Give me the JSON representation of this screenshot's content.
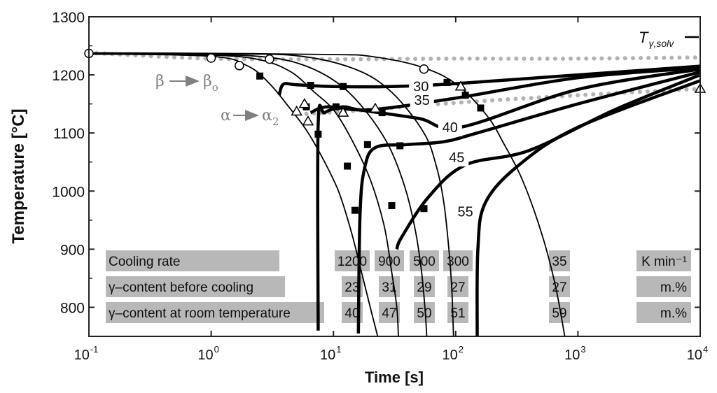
{
  "chart_data": {
    "type": "line",
    "title": "",
    "xlabel": "Time [s]",
    "ylabel": "Temperature [°C]",
    "x_scale": "log",
    "xlim": [
      0.1,
      10000
    ],
    "ylim": [
      750,
      1300
    ],
    "x_ticks": [
      {
        "value": 0.1,
        "base": "10",
        "exp": "-1"
      },
      {
        "value": 1,
        "base": "10",
        "exp": "0"
      },
      {
        "value": 10,
        "base": "10",
        "exp": "1"
      },
      {
        "value": 100,
        "base": "10",
        "exp": "2"
      },
      {
        "value": 1000,
        "base": "10",
        "exp": "3"
      },
      {
        "value": 10000,
        "base": "10",
        "exp": "4"
      }
    ],
    "y_ticks": [
      {
        "value": 800,
        "label": "800"
      },
      {
        "value": 900,
        "label": "900"
      },
      {
        "value": 1000,
        "label": "1000"
      },
      {
        "value": 1100,
        "label": "1100"
      },
      {
        "value": 1200,
        "label": "1200"
      },
      {
        "value": 1300,
        "label": "1300"
      }
    ],
    "phase_labels": {
      "t_solv": {
        "main": "T",
        "sub": "γ,solv",
        "y": 1265
      },
      "beta": {
        "from": "β",
        "to": "β",
        "to_sub": "o"
      },
      "alpha": {
        "from": "α",
        "to": "α",
        "to_sub": "2"
      }
    },
    "dotted_boundaries": [
      {
        "name": "upper-phase-boundary",
        "points": [
          [
            0.1,
            1238
          ],
          [
            1,
            1228
          ],
          [
            10,
            1227
          ],
          [
            100,
            1228
          ],
          [
            1000,
            1228
          ],
          [
            10000,
            1230
          ]
        ]
      },
      {
        "name": "lower-phase-boundary",
        "points": [
          [
            6,
            1133
          ],
          [
            20,
            1140
          ],
          [
            100,
            1152
          ],
          [
            1000,
            1165
          ],
          [
            10000,
            1176
          ]
        ]
      }
    ],
    "cooling_curves": [
      {
        "rate": "1200",
        "points": [
          [
            0.1,
            1236
          ],
          [
            1,
            1232
          ],
          [
            2,
            1215
          ],
          [
            3,
            1185
          ],
          [
            4.5,
            1140
          ],
          [
            6,
            1105
          ],
          [
            8,
            1060
          ],
          [
            11,
            1000
          ],
          [
            14,
            930
          ],
          [
            17,
            860
          ],
          [
            20,
            800
          ],
          [
            23,
            750
          ]
        ]
      },
      {
        "rate": "900",
        "points": [
          [
            0.1,
            1236
          ],
          [
            1,
            1234
          ],
          [
            2.5,
            1226
          ],
          [
            4.5,
            1205
          ],
          [
            7,
            1170
          ],
          [
            10,
            1140
          ],
          [
            14,
            1090
          ],
          [
            20,
            1020
          ],
          [
            26,
            940
          ],
          [
            30,
            860
          ],
          [
            33,
            800
          ],
          [
            34,
            750
          ]
        ]
      },
      {
        "rate": "500",
        "points": [
          [
            0.1,
            1237
          ],
          [
            1,
            1235
          ],
          [
            3,
            1230
          ],
          [
            6,
            1215
          ],
          [
            11,
            1185
          ],
          [
            18,
            1140
          ],
          [
            28,
            1080
          ],
          [
            38,
            1010
          ],
          [
            46,
            940
          ],
          [
            52,
            870
          ],
          [
            56,
            800
          ],
          [
            58,
            750
          ]
        ]
      },
      {
        "rate": "300",
        "points": [
          [
            0.1,
            1237
          ],
          [
            1,
            1236
          ],
          [
            5,
            1233
          ],
          [
            15,
            1210
          ],
          [
            30,
            1170
          ],
          [
            55,
            1100
          ],
          [
            70,
            1040
          ],
          [
            80,
            980
          ],
          [
            88,
            900
          ],
          [
            93,
            830
          ],
          [
            96,
            750
          ]
        ]
      },
      {
        "rate": "35",
        "points": [
          [
            0.1,
            1238
          ],
          [
            1,
            1237
          ],
          [
            10,
            1235
          ],
          [
            20,
            1232
          ],
          [
            50,
            1215
          ],
          [
            100,
            1185
          ],
          [
            180,
            1130
          ],
          [
            250,
            1080
          ],
          [
            350,
            1020
          ],
          [
            500,
            930
          ],
          [
            650,
            840
          ],
          [
            780,
            750
          ]
        ]
      }
    ],
    "isolines": [
      {
        "label": "30",
        "label_x": 52,
        "label_y": 1180,
        "points": [
          [
            3.6,
            1165
          ],
          [
            3.9,
            1184
          ],
          [
            5,
            1183
          ],
          [
            10,
            1180
          ],
          [
            30,
            1180
          ],
          [
            100,
            1185
          ],
          [
            1000,
            1200
          ],
          [
            10000,
            1215
          ]
        ]
      },
      {
        "label": "35",
        "label_x": 53,
        "label_y": 1157,
        "points": [
          [
            6.5,
            1135
          ],
          [
            9,
            1145
          ],
          [
            20,
            1140
          ],
          [
            100,
            1160
          ],
          [
            1000,
            1195
          ],
          [
            10000,
            1212
          ]
        ]
      },
      {
        "label": "40",
        "label_x": 90,
        "label_y": 1110,
        "points": [
          [
            7.5,
            760
          ],
          [
            7.5,
            1115
          ],
          [
            8.5,
            1135
          ],
          [
            12,
            1145
          ],
          [
            16,
            1140
          ],
          [
            50,
            1125
          ],
          [
            110,
            1110
          ],
          [
            1000,
            1175
          ],
          [
            10000,
            1210
          ]
        ]
      },
      {
        "label": "45",
        "label_x": 102,
        "label_y": 1058,
        "points": [
          [
            16,
            755
          ],
          [
            16.5,
            960
          ],
          [
            18,
            1040
          ],
          [
            22,
            1075
          ],
          [
            40,
            1080
          ],
          [
            80,
            1085
          ],
          [
            150,
            1100
          ],
          [
            1000,
            1150
          ],
          [
            10000,
            1205
          ]
        ]
      },
      {
        "label": "55",
        "label_x": 120,
        "label_y": 965,
        "points": [
          [
            33,
            900
          ],
          [
            36,
            920
          ],
          [
            60,
            990
          ],
          [
            120,
            1045
          ],
          [
            400,
            1070
          ],
          [
            2000,
            1140
          ],
          [
            10000,
            1200
          ]
        ]
      },
      {
        "label": "",
        "points": [
          [
            150,
            750
          ],
          [
            152,
            900
          ],
          [
            175,
            980
          ],
          [
            330,
            1045
          ],
          [
            1000,
            1110
          ],
          [
            10000,
            1190
          ]
        ]
      }
    ],
    "markers": {
      "squares": [
        [
          2.5,
          1198
        ],
        [
          6.5,
          1182
        ],
        [
          10.5,
          1145
        ],
        [
          12,
          1180
        ],
        [
          13,
          1043
        ],
        [
          15,
          967
        ],
        [
          19,
          1080
        ],
        [
          25,
          1135
        ],
        [
          30,
          975
        ],
        [
          35,
          1078
        ],
        [
          55,
          970
        ],
        [
          85,
          1187
        ],
        [
          120,
          1165
        ],
        [
          160,
          1143
        ],
        [
          6,
          1145
        ],
        [
          7.5,
          1098
        ]
      ],
      "circles": [
        [
          0.1,
          1237
        ],
        [
          1,
          1229
        ],
        [
          1.7,
          1216
        ],
        [
          3,
          1227
        ],
        [
          55,
          1210
        ]
      ],
      "triangles": [
        [
          5,
          1137
        ],
        [
          5.8,
          1150
        ],
        [
          6.2,
          1120
        ],
        [
          12,
          1135
        ],
        [
          22,
          1142
        ],
        [
          110,
          1180
        ],
        [
          10000,
          1176
        ]
      ]
    },
    "table": {
      "rows": [
        {
          "label": "Cooling rate",
          "values": [
            "1200",
            "900",
            "500",
            "300",
            "35"
          ],
          "unit": "K min⁻¹"
        },
        {
          "label": "γ–content before cooling",
          "values": [
            "23",
            "31",
            "29",
            "27",
            "27"
          ],
          "unit": "m.%"
        },
        {
          "label": "γ–content at room temperature",
          "values": [
            "40",
            "47",
            "50",
            "51",
            "59"
          ],
          "unit": "m.%"
        }
      ]
    }
  },
  "colors": {
    "grid_box": "#7a7a7a",
    "curve": "#000000",
    "dotted": "#b3b3b3",
    "table_bg": "#b8b8b8",
    "phase_arrow": "#808080"
  }
}
